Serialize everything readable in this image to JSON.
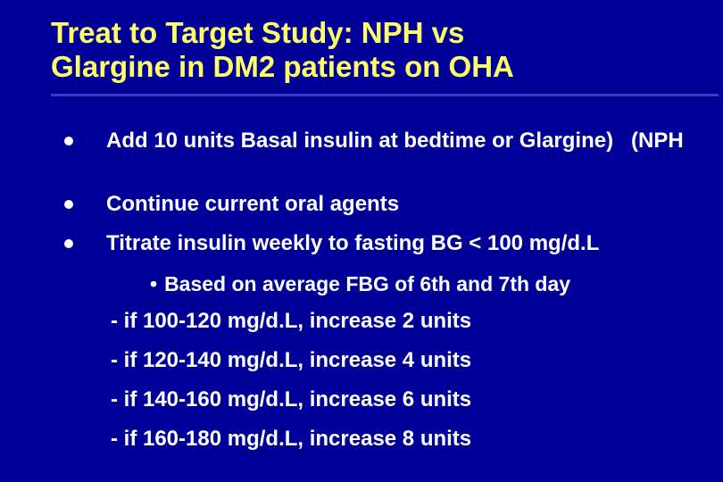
{
  "slide": {
    "title_line1": "Treat to Target Study: NPH vs",
    "title_line2": "Glargine in DM2 patients on OHA",
    "bullets": [
      {
        "text": "Add 10 units Basal insulin at bedtime or Glargine)",
        "suffix": "(NPH"
      },
      {
        "text": "Continue current oral agents"
      },
      {
        "text": "Titrate insulin weekly to fasting BG < 100 mg/d.L"
      }
    ],
    "sub_bullet_marker": "•",
    "sub_bullet": "Based on average FBG of 6th and 7th day",
    "steps": [
      "- if 100-120 mg/d.L, increase 2 units",
      "- if 120-140 mg/d.L, increase 4 units",
      "- if 140-160 mg/d.L, increase 6 units",
      "- if 160-180 mg/d.L, increase 8 units"
    ],
    "colors": {
      "background": "#000099",
      "title": "#ffff66",
      "body_text": "#ffffff"
    }
  }
}
